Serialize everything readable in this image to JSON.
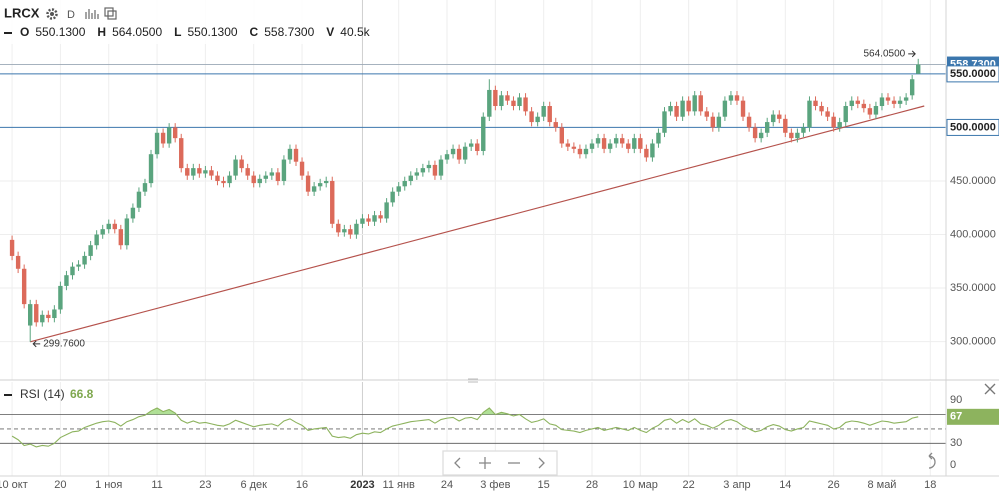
{
  "header": {
    "symbol": "LRCX",
    "interval": "D"
  },
  "chart_data": {
    "type": "candlestick",
    "legend": {
      "items": [
        {
          "key": "O",
          "value": 550.13,
          "label": "550.1300"
        },
        {
          "key": "H",
          "value": 564.05,
          "label": "564.0500"
        },
        {
          "key": "L",
          "value": 550.13,
          "label": "550.1300"
        },
        {
          "key": "C",
          "value": 558.73,
          "label": "558.7300"
        },
        {
          "key": "V",
          "value": 40500,
          "label": "40.5k"
        }
      ]
    },
    "up_color": "#5aa47e",
    "down_color": "#dc6a5a",
    "open": [
      395,
      380,
      368,
      315,
      335,
      318,
      325,
      322,
      330,
      352,
      362,
      370,
      372,
      380,
      390,
      400,
      405,
      410,
      405,
      390,
      415,
      425,
      440,
      448,
      475,
      495,
      485,
      500,
      490,
      462,
      455,
      462,
      457,
      460,
      455,
      450,
      448,
      455,
      470,
      462,
      455,
      448,
      452,
      455,
      458,
      450,
      470,
      480,
      468,
      455,
      440,
      445,
      448,
      450,
      410,
      402,
      405,
      400,
      410,
      415,
      412,
      418,
      415,
      430,
      440,
      445,
      450,
      455,
      458,
      462,
      465,
      455,
      470,
      475,
      480,
      470,
      482,
      485,
      478,
      510,
      535,
      520,
      530,
      525,
      520,
      528,
      515,
      505,
      510,
      520,
      505,
      500,
      485,
      482,
      480,
      475,
      480,
      485,
      490,
      480,
      485,
      490,
      485,
      480,
      490,
      480,
      472,
      485,
      495,
      515,
      520,
      510,
      525,
      515,
      530,
      515,
      510,
      500,
      510,
      525,
      530,
      525,
      510,
      500,
      490,
      495,
      505,
      512,
      508,
      495,
      490,
      495,
      500,
      525,
      520,
      515,
      510,
      500,
      505,
      520,
      525,
      522,
      518,
      512,
      520,
      528,
      525,
      522,
      525,
      530,
      550.13
    ],
    "high": [
      399,
      384,
      372,
      339,
      339,
      329,
      329,
      334,
      356,
      366,
      374,
      376,
      384,
      394,
      404,
      409,
      414,
      414,
      409,
      419,
      429,
      444,
      452,
      479,
      499,
      499,
      504,
      504,
      494,
      466,
      466,
      466,
      464,
      464,
      459,
      454,
      459,
      474,
      474,
      466,
      459,
      456,
      459,
      462,
      462,
      474,
      484,
      484,
      472,
      459,
      449,
      452,
      454,
      454,
      414,
      409,
      409,
      414,
      419,
      419,
      422,
      422,
      434,
      444,
      449,
      454,
      459,
      462,
      466,
      469,
      469,
      474,
      479,
      484,
      484,
      486,
      489,
      489,
      514,
      545,
      539,
      534,
      534,
      529,
      532,
      532,
      519,
      514,
      524,
      524,
      509,
      504,
      489,
      486,
      484,
      484,
      489,
      494,
      494,
      489,
      494,
      494,
      489,
      494,
      494,
      484,
      489,
      499,
      519,
      524,
      524,
      529,
      529,
      534,
      534,
      519,
      514,
      514,
      529,
      534,
      534,
      529,
      514,
      504,
      499,
      509,
      516,
      516,
      512,
      499,
      499,
      504,
      529,
      529,
      524,
      519,
      514,
      509,
      524,
      529,
      529,
      526,
      522,
      524,
      532,
      532,
      529,
      529,
      532,
      549,
      564.05
    ],
    "low": [
      376,
      364,
      331,
      299.76,
      314,
      314,
      318,
      318,
      326,
      348,
      358,
      366,
      368,
      376,
      386,
      396,
      401,
      401,
      386,
      386,
      411,
      421,
      436,
      444,
      471,
      481,
      481,
      486,
      458,
      451,
      451,
      453,
      453,
      451,
      446,
      444,
      444,
      451,
      458,
      451,
      444,
      444,
      448,
      451,
      446,
      446,
      466,
      464,
      451,
      436,
      436,
      441,
      444,
      406,
      398,
      398,
      396,
      396,
      406,
      408,
      408,
      411,
      411,
      426,
      436,
      441,
      446,
      451,
      454,
      458,
      451,
      451,
      466,
      471,
      466,
      466,
      478,
      474,
      474,
      506,
      516,
      516,
      521,
      516,
      516,
      511,
      501,
      501,
      506,
      501,
      496,
      481,
      478,
      476,
      471,
      471,
      476,
      481,
      476,
      476,
      481,
      481,
      476,
      476,
      476,
      468,
      468,
      481,
      491,
      511,
      506,
      506,
      511,
      511,
      511,
      506,
      496,
      496,
      506,
      521,
      521,
      506,
      496,
      486,
      486,
      491,
      501,
      504,
      491,
      486,
      486,
      491,
      496,
      516,
      511,
      506,
      496,
      496,
      501,
      516,
      518,
      514,
      508,
      508,
      516,
      521,
      518,
      518,
      521,
      526,
      550.13
    ],
    "close": [
      380,
      368,
      335,
      335,
      318,
      325,
      322,
      330,
      352,
      362,
      370,
      372,
      380,
      390,
      400,
      405,
      410,
      405,
      390,
      415,
      425,
      440,
      448,
      475,
      495,
      485,
      500,
      490,
      462,
      455,
      462,
      457,
      460,
      455,
      450,
      448,
      455,
      470,
      462,
      455,
      448,
      452,
      455,
      458,
      450,
      470,
      480,
      468,
      455,
      440,
      445,
      448,
      450,
      410,
      402,
      405,
      400,
      410,
      415,
      412,
      418,
      415,
      430,
      440,
      445,
      450,
      455,
      458,
      462,
      465,
      455,
      470,
      475,
      480,
      470,
      482,
      485,
      478,
      510,
      535,
      520,
      530,
      525,
      520,
      528,
      515,
      505,
      510,
      520,
      505,
      500,
      485,
      482,
      480,
      475,
      480,
      485,
      490,
      480,
      485,
      490,
      485,
      480,
      490,
      480,
      472,
      485,
      495,
      515,
      520,
      510,
      525,
      515,
      530,
      515,
      510,
      500,
      510,
      525,
      530,
      525,
      510,
      500,
      490,
      495,
      505,
      512,
      508,
      495,
      490,
      495,
      500,
      525,
      520,
      515,
      510,
      500,
      505,
      520,
      525,
      522,
      518,
      512,
      520,
      528,
      525,
      522,
      525,
      528,
      545,
      558.73
    ],
    "xlim": [
      -2,
      154.6
    ],
    "xticks": [
      {
        "value": 0,
        "label": "10 окт"
      },
      {
        "value": 8,
        "label": "20"
      },
      {
        "value": 16,
        "label": "1 ноя"
      },
      {
        "value": 24,
        "label": "11"
      },
      {
        "value": 32,
        "label": "23"
      },
      {
        "value": 40,
        "label": "6 дек"
      },
      {
        "value": 48,
        "label": "16"
      },
      {
        "value": 58,
        "label": "2023",
        "major": true
      },
      {
        "value": 64,
        "label": "11 янв"
      },
      {
        "value": 72,
        "label": "24"
      },
      {
        "value": 80,
        "label": "3 фев"
      },
      {
        "value": 88,
        "label": "15"
      },
      {
        "value": 96,
        "label": "28"
      },
      {
        "value": 104,
        "label": "10 мар"
      },
      {
        "value": 112,
        "label": "22"
      },
      {
        "value": 120,
        "label": "3 апр"
      },
      {
        "value": 128,
        "label": "14"
      },
      {
        "value": 136,
        "label": "26"
      },
      {
        "value": 144,
        "label": "8 май"
      },
      {
        "value": 152,
        "label": "18"
      }
    ],
    "ylim": [
      266,
      619
    ],
    "yticks": [
      {
        "value": 300,
        "label": "300.0000"
      },
      {
        "value": 350,
        "label": "350.0000"
      },
      {
        "value": 400,
        "label": "400.0000"
      },
      {
        "value": 450,
        "label": "450.0000"
      }
    ],
    "grid": true,
    "hlines": [
      {
        "value": 550,
        "label": "550.0000"
      },
      {
        "value": 500,
        "label": "500.0000"
      }
    ],
    "hline_color": "#3b76ad",
    "last_price": {
      "value": 558.73,
      "label": "558.7300"
    },
    "high_marker": {
      "index": 150,
      "value": 564.05,
      "label": "564.0500"
    },
    "low_marker": {
      "index": 3,
      "value": 299.76,
      "label": "299.7600"
    },
    "trendline": {
      "x": [
        3,
        151
      ],
      "y": [
        299.76,
        520
      ],
      "color": "#b5524c"
    },
    "rsi": {
      "title": "RSI (14)",
      "last": 66.8,
      "axis_label": {
        "value": 66.8,
        "label": "67"
      },
      "color": "#8db35e",
      "values": [
        40,
        35,
        27,
        29,
        25,
        27,
        26,
        30,
        38,
        42,
        46,
        47,
        52,
        55,
        58,
        60,
        61,
        59,
        54,
        60,
        63,
        67,
        69,
        75,
        79,
        74,
        77,
        72,
        62,
        58,
        61,
        58,
        59,
        57,
        55,
        54,
        57,
        62,
        59,
        56,
        53,
        55,
        56,
        57,
        54,
        61,
        64,
        59,
        55,
        48,
        50,
        51,
        52,
        40,
        38,
        39,
        37,
        42,
        44,
        43,
        46,
        45,
        50,
        54,
        56,
        58,
        60,
        61,
        62,
        63,
        58,
        63,
        65,
        66,
        61,
        65,
        66,
        63,
        73,
        79,
        70,
        73,
        71,
        68,
        70,
        64,
        59,
        61,
        64,
        57,
        55,
        49,
        48,
        47,
        45,
        48,
        50,
        52,
        48,
        50,
        52,
        50,
        48,
        52,
        48,
        45,
        51,
        55,
        62,
        64,
        58,
        63,
        59,
        64,
        57,
        55,
        51,
        55,
        61,
        63,
        60,
        54,
        50,
        46,
        48,
        53,
        56,
        54,
        49,
        47,
        50,
        52,
        61,
        59,
        57,
        55,
        50,
        52,
        59,
        61,
        60,
        58,
        55,
        58,
        61,
        60,
        58,
        59,
        60,
        65,
        66.8
      ],
      "ylim": [
        -14,
        111
      ],
      "yticks": [
        90,
        30,
        0
      ],
      "levels": [
        70,
        50,
        30
      ]
    }
  }
}
